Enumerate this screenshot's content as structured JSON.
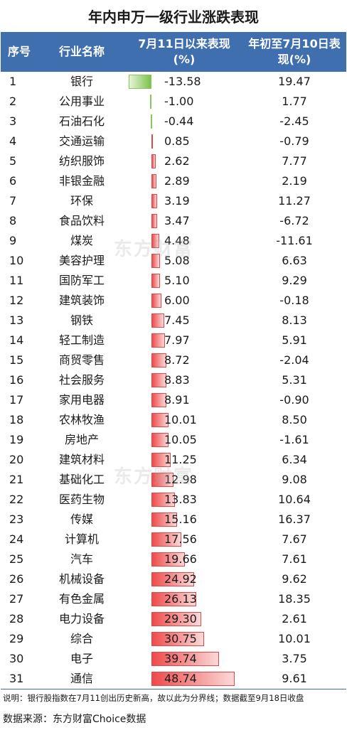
{
  "title": "年内申万一级行业涨跌表现",
  "header": {
    "index": "序号",
    "name": "行业名称",
    "since_jul11": "7月11日以来表现(%)",
    "ytd_jul10": "年初至7月10日表现(%)"
  },
  "chart_data": {
    "type": "table",
    "columns": [
      "序号",
      "行业名称",
      "7月11日以来表现(%)",
      "年初至7月10日表现(%)"
    ],
    "rows": [
      {
        "index": "1",
        "name": "银行",
        "since_jul11": -13.58,
        "ytd_jul10": 19.47
      },
      {
        "index": "2",
        "name": "公用事业",
        "since_jul11": -1.0,
        "ytd_jul10": 1.77
      },
      {
        "index": "3",
        "name": "石油石化",
        "since_jul11": -0.44,
        "ytd_jul10": -2.45
      },
      {
        "index": "4",
        "name": "交通运输",
        "since_jul11": 0.85,
        "ytd_jul10": -0.79
      },
      {
        "index": "5",
        "name": "纺织服饰",
        "since_jul11": 2.62,
        "ytd_jul10": 7.77
      },
      {
        "index": "6",
        "name": "非银金融",
        "since_jul11": 2.89,
        "ytd_jul10": 2.19
      },
      {
        "index": "7",
        "name": "环保",
        "since_jul11": 3.19,
        "ytd_jul10": 11.27
      },
      {
        "index": "8",
        "name": "食品饮料",
        "since_jul11": 3.47,
        "ytd_jul10": -6.72
      },
      {
        "index": "9",
        "name": "煤炭",
        "since_jul11": 4.48,
        "ytd_jul10": -11.61
      },
      {
        "index": "10",
        "name": "美容护理",
        "since_jul11": 5.08,
        "ytd_jul10": 6.63
      },
      {
        "index": "11",
        "name": "国防军工",
        "since_jul11": 5.1,
        "ytd_jul10": 9.29
      },
      {
        "index": "12",
        "name": "建筑装饰",
        "since_jul11": 6.0,
        "ytd_jul10": -0.18
      },
      {
        "index": "13",
        "name": "钢铁",
        "since_jul11": 7.45,
        "ytd_jul10": 8.13
      },
      {
        "index": "14",
        "name": "轻工制造",
        "since_jul11": 7.97,
        "ytd_jul10": 5.91
      },
      {
        "index": "15",
        "name": "商贸零售",
        "since_jul11": 8.72,
        "ytd_jul10": -2.04
      },
      {
        "index": "16",
        "name": "社会服务",
        "since_jul11": 8.83,
        "ytd_jul10": 5.31
      },
      {
        "index": "17",
        "name": "家用电器",
        "since_jul11": 8.91,
        "ytd_jul10": -0.9
      },
      {
        "index": "18",
        "name": "农林牧渔",
        "since_jul11": 10.01,
        "ytd_jul10": 8.5
      },
      {
        "index": "19",
        "name": "房地产",
        "since_jul11": 10.05,
        "ytd_jul10": -1.61
      },
      {
        "index": "20",
        "name": "建筑材料",
        "since_jul11": 11.25,
        "ytd_jul10": 6.34
      },
      {
        "index": "21",
        "name": "基础化工",
        "since_jul11": 12.98,
        "ytd_jul10": 9.08
      },
      {
        "index": "22",
        "name": "医药生物",
        "since_jul11": 13.83,
        "ytd_jul10": 10.64
      },
      {
        "index": "23",
        "name": "传媒",
        "since_jul11": 15.16,
        "ytd_jul10": 16.37
      },
      {
        "index": "24",
        "name": "计算机",
        "since_jul11": 17.56,
        "ytd_jul10": 7.67
      },
      {
        "index": "25",
        "name": "汽车",
        "since_jul11": 19.66,
        "ytd_jul10": 7.61
      },
      {
        "index": "26",
        "name": "机械设备",
        "since_jul11": 24.92,
        "ytd_jul10": 9.62
      },
      {
        "index": "27",
        "name": "有色金属",
        "since_jul11": 26.13,
        "ytd_jul10": 18.35
      },
      {
        "index": "28",
        "name": "电力设备",
        "since_jul11": 29.3,
        "ytd_jul10": 2.61
      },
      {
        "index": "29",
        "name": "综合",
        "since_jul11": 30.75,
        "ytd_jul10": 10.01
      },
      {
        "index": "30",
        "name": "电子",
        "since_jul11": 39.74,
        "ytd_jul10": 3.75
      },
      {
        "index": "31",
        "name": "通信",
        "since_jul11": 48.74,
        "ytd_jul10": 9.61
      }
    ],
    "bar_colors": {
      "positive": "#ef4a4a",
      "negative": "#7cc24a"
    }
  },
  "colors": {
    "header_bg": "#3f6fae",
    "header_text": "#ffffff"
  },
  "note": "说明：银行股指数在7月11创出历史新高，故以此为分界线；数据截至9月18日收盘",
  "source": "数据来源：东方财富Choice数据",
  "watermark": "东方财富"
}
